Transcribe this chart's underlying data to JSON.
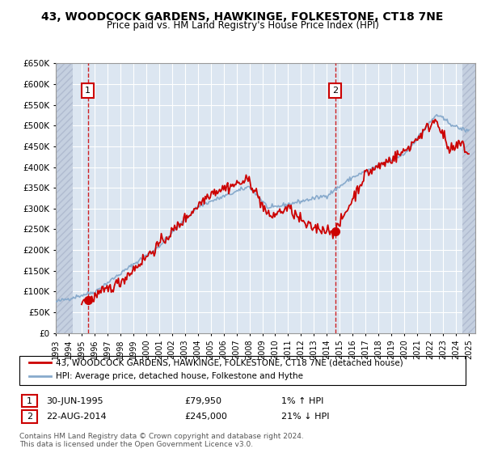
{
  "title": "43, WOODCOCK GARDENS, HAWKINGE, FOLKESTONE, CT18 7NE",
  "subtitle": "Price paid vs. HM Land Registry's House Price Index (HPI)",
  "ylim": [
    0,
    650000
  ],
  "yticks": [
    0,
    50000,
    100000,
    150000,
    200000,
    250000,
    300000,
    350000,
    400000,
    450000,
    500000,
    550000,
    600000,
    650000
  ],
  "xlim_start": 1993,
  "xlim_end": 2025.5,
  "plot_bg": "#dce6f1",
  "grid_color": "#ffffff",
  "red_line_color": "#cc0000",
  "blue_line_color": "#88aacc",
  "point1_year": 1995.49,
  "point1_value": 79950,
  "point2_year": 2014.64,
  "point2_value": 245000,
  "legend_entry1": "43, WOODCOCK GARDENS, HAWKINGE, FOLKESTONE, CT18 7NE (detached house)",
  "legend_entry2": "HPI: Average price, detached house, Folkestone and Hythe",
  "annotation1_date": "30-JUN-1995",
  "annotation1_price": "£79,950",
  "annotation1_hpi": "1% ↑ HPI",
  "annotation2_date": "22-AUG-2014",
  "annotation2_price": "£245,000",
  "annotation2_hpi": "21% ↓ HPI",
  "footer": "Contains HM Land Registry data © Crown copyright and database right 2024.\nThis data is licensed under the Open Government Licence v3.0."
}
